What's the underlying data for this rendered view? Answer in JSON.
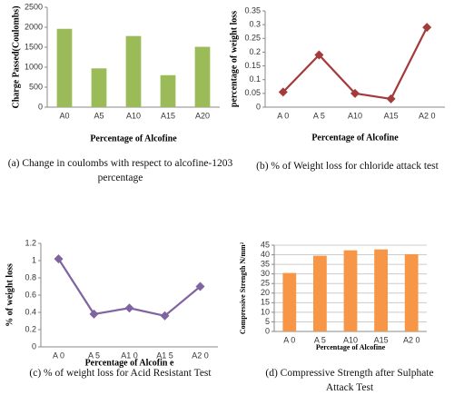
{
  "chart_data": [
    {
      "type": "bar",
      "y_label": "Charge Passed(Coulombs)",
      "x_label": "Percentage of Alcofine",
      "categories": [
        "A0",
        "A5",
        "A10",
        "A15",
        "A20"
      ],
      "values": [
        1960,
        970,
        1780,
        800,
        1510
      ],
      "color": "#9bbb59",
      "ylim": [
        0,
        2500
      ],
      "yticks": [
        0,
        500,
        1000,
        1500,
        2000,
        2500
      ],
      "grid": false,
      "caption": "(a) Change in coulombs with respect to alcofine-1203 percentage"
    },
    {
      "type": "line",
      "y_label": "percentage of weight loss",
      "x_label": "Percentage of Alcofine",
      "categories": [
        "A 0",
        "A 5",
        "A10",
        "A15",
        "A2 0"
      ],
      "values": [
        0.055,
        0.19,
        0.05,
        0.03,
        0.29
      ],
      "color": "#a33b3b",
      "ylim": [
        0,
        0.35
      ],
      "yticks": [
        0,
        0.05,
        0.1,
        0.15,
        0.2,
        0.25,
        0.3,
        0.35
      ],
      "grid": false,
      "caption": "(b) % of Weight loss for chloride attack test"
    },
    {
      "type": "line",
      "y_label": "% of weight loss",
      "x_label": "Percentage of Alcofin e",
      "categories": [
        "A 0",
        "A 5",
        "A1 0",
        "A1 5",
        "A2 0"
      ],
      "values": [
        1.02,
        0.38,
        0.45,
        0.36,
        0.7
      ],
      "color": "#7f64a0",
      "ylim": [
        0,
        1.2
      ],
      "yticks": [
        0,
        0.2,
        0.4,
        0.6,
        0.8,
        1,
        1.2
      ],
      "grid": false,
      "caption": "(c) % of weight loss for Acid Resistant Test"
    },
    {
      "type": "bar",
      "y_label": "Compressive Strength N/mm²",
      "x_label": "Percentage of Alcofine",
      "categories": [
        "A 0",
        "A 5",
        "A10",
        "A15",
        "A2 0"
      ],
      "values": [
        30.5,
        39.5,
        42.3,
        42.8,
        40.3
      ],
      "color": "#f79646",
      "ylim": [
        0,
        45
      ],
      "yticks": [
        0,
        5,
        10,
        15,
        20,
        25,
        30,
        35,
        40,
        45
      ],
      "grid": true,
      "caption": "(d) Compressive Strength after Sulphate Attack Test"
    }
  ]
}
